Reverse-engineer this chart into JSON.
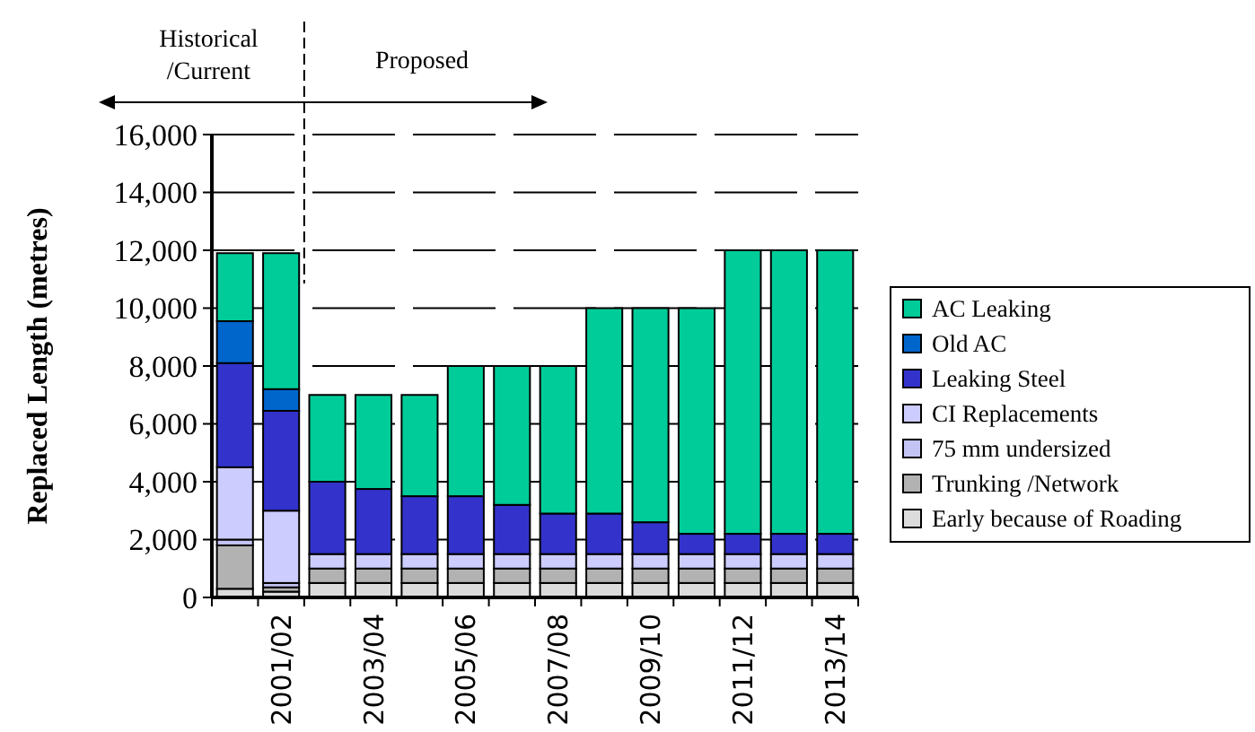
{
  "chart_data": {
    "type": "bar",
    "stacked": true,
    "ylabel": "Replaced Length (metres)",
    "categories": [
      null,
      "2001/02",
      null,
      "2003/04",
      null,
      "2005/06",
      null,
      "2007/08",
      null,
      "2009/10",
      null,
      "2011/12",
      null,
      "2013/14"
    ],
    "series": [
      {
        "name": "Early because of Roading",
        "color": "#dcdcdc",
        "values": [
          300,
          200,
          500,
          500,
          500,
          500,
          500,
          500,
          500,
          500,
          500,
          500,
          500,
          500
        ]
      },
      {
        "name": "Trunking /Network",
        "color": "#b2b2b2",
        "values": [
          1500,
          150,
          500,
          500,
          500,
          500,
          500,
          500,
          500,
          500,
          500,
          500,
          500,
          500
        ]
      },
      {
        "name": "75 mm undersized",
        "color": "#c4c4f4",
        "values": [
          200,
          150,
          0,
          0,
          0,
          0,
          0,
          0,
          0,
          0,
          0,
          0,
          0,
          0
        ]
      },
      {
        "name": "CI Replacements",
        "color": "#ccccff",
        "values": [
          2500,
          2500,
          500,
          500,
          500,
          500,
          500,
          500,
          500,
          500,
          500,
          500,
          500,
          500
        ]
      },
      {
        "name": "Leaking Steel",
        "color": "#3333cc",
        "values": [
          3600,
          3450,
          2500,
          2250,
          2000,
          2000,
          1700,
          1400,
          1400,
          1100,
          700,
          700,
          700,
          700
        ]
      },
      {
        "name": "Old AC",
        "color": "#0066cc",
        "values": [
          1450,
          750,
          0,
          0,
          0,
          0,
          0,
          0,
          0,
          0,
          0,
          0,
          0,
          0
        ]
      },
      {
        "name": "AC Leaking",
        "color": "#00cc99",
        "values": [
          2350,
          4700,
          3000,
          3250,
          3500,
          4500,
          4800,
          5100,
          7100,
          7400,
          7800,
          9800,
          9800,
          9800
        ]
      }
    ],
    "ylim": [
      0,
      16000
    ],
    "yticks": [
      {
        "value": 0,
        "label": "0"
      },
      {
        "value": 2000,
        "label": "2,000"
      },
      {
        "value": 4000,
        "label": "4,000"
      },
      {
        "value": 6000,
        "label": "6,000"
      },
      {
        "value": 8000,
        "label": "8,000"
      },
      {
        "value": 10000,
        "label": "10,000"
      },
      {
        "value": 12000,
        "label": "12,000"
      },
      {
        "value": 14000,
        "label": "14,000"
      },
      {
        "value": 16000,
        "label": "16,000"
      }
    ],
    "grid": "y",
    "legend": "right",
    "annotations": [
      "Historical /Current",
      "Proposed"
    ]
  }
}
